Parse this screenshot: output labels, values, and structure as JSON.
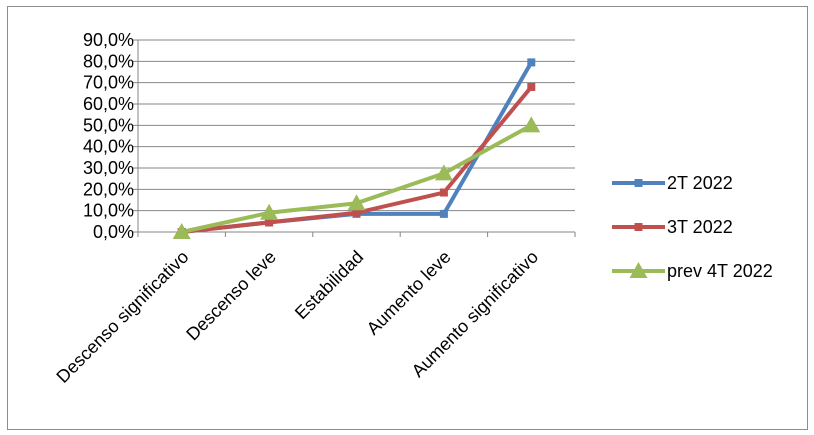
{
  "chart_data": {
    "type": "line",
    "title": "",
    "xlabel": "",
    "ylabel": "",
    "categories": [
      "Descenso significativo",
      "Descenso leve",
      "Estabilidad",
      "Aumento leve",
      "Aumento significativo"
    ],
    "ylim": [
      0,
      90
    ],
    "y_ticks": [
      "0,0%",
      "10,0%",
      "20,0%",
      "30,0%",
      "40,0%",
      "50,0%",
      "60,0%",
      "70,0%",
      "80,0%",
      "90,0%"
    ],
    "grid": "horizontal",
    "legend_position": "right",
    "series": [
      {
        "name": "2T 2022",
        "color": "#4f81bd",
        "marker": "square",
        "values": [
          0.0,
          4.5,
          8.5,
          8.5,
          79.5
        ]
      },
      {
        "name": "3T 2022",
        "color": "#c0504d",
        "marker": "square",
        "values": [
          0.0,
          4.5,
          9.0,
          18.5,
          68.0
        ]
      },
      {
        "name": "prev 4T 2022",
        "color": "#9bbb59",
        "marker": "triangle",
        "values": [
          0.0,
          9.0,
          13.5,
          27.5,
          50.0
        ]
      }
    ]
  }
}
